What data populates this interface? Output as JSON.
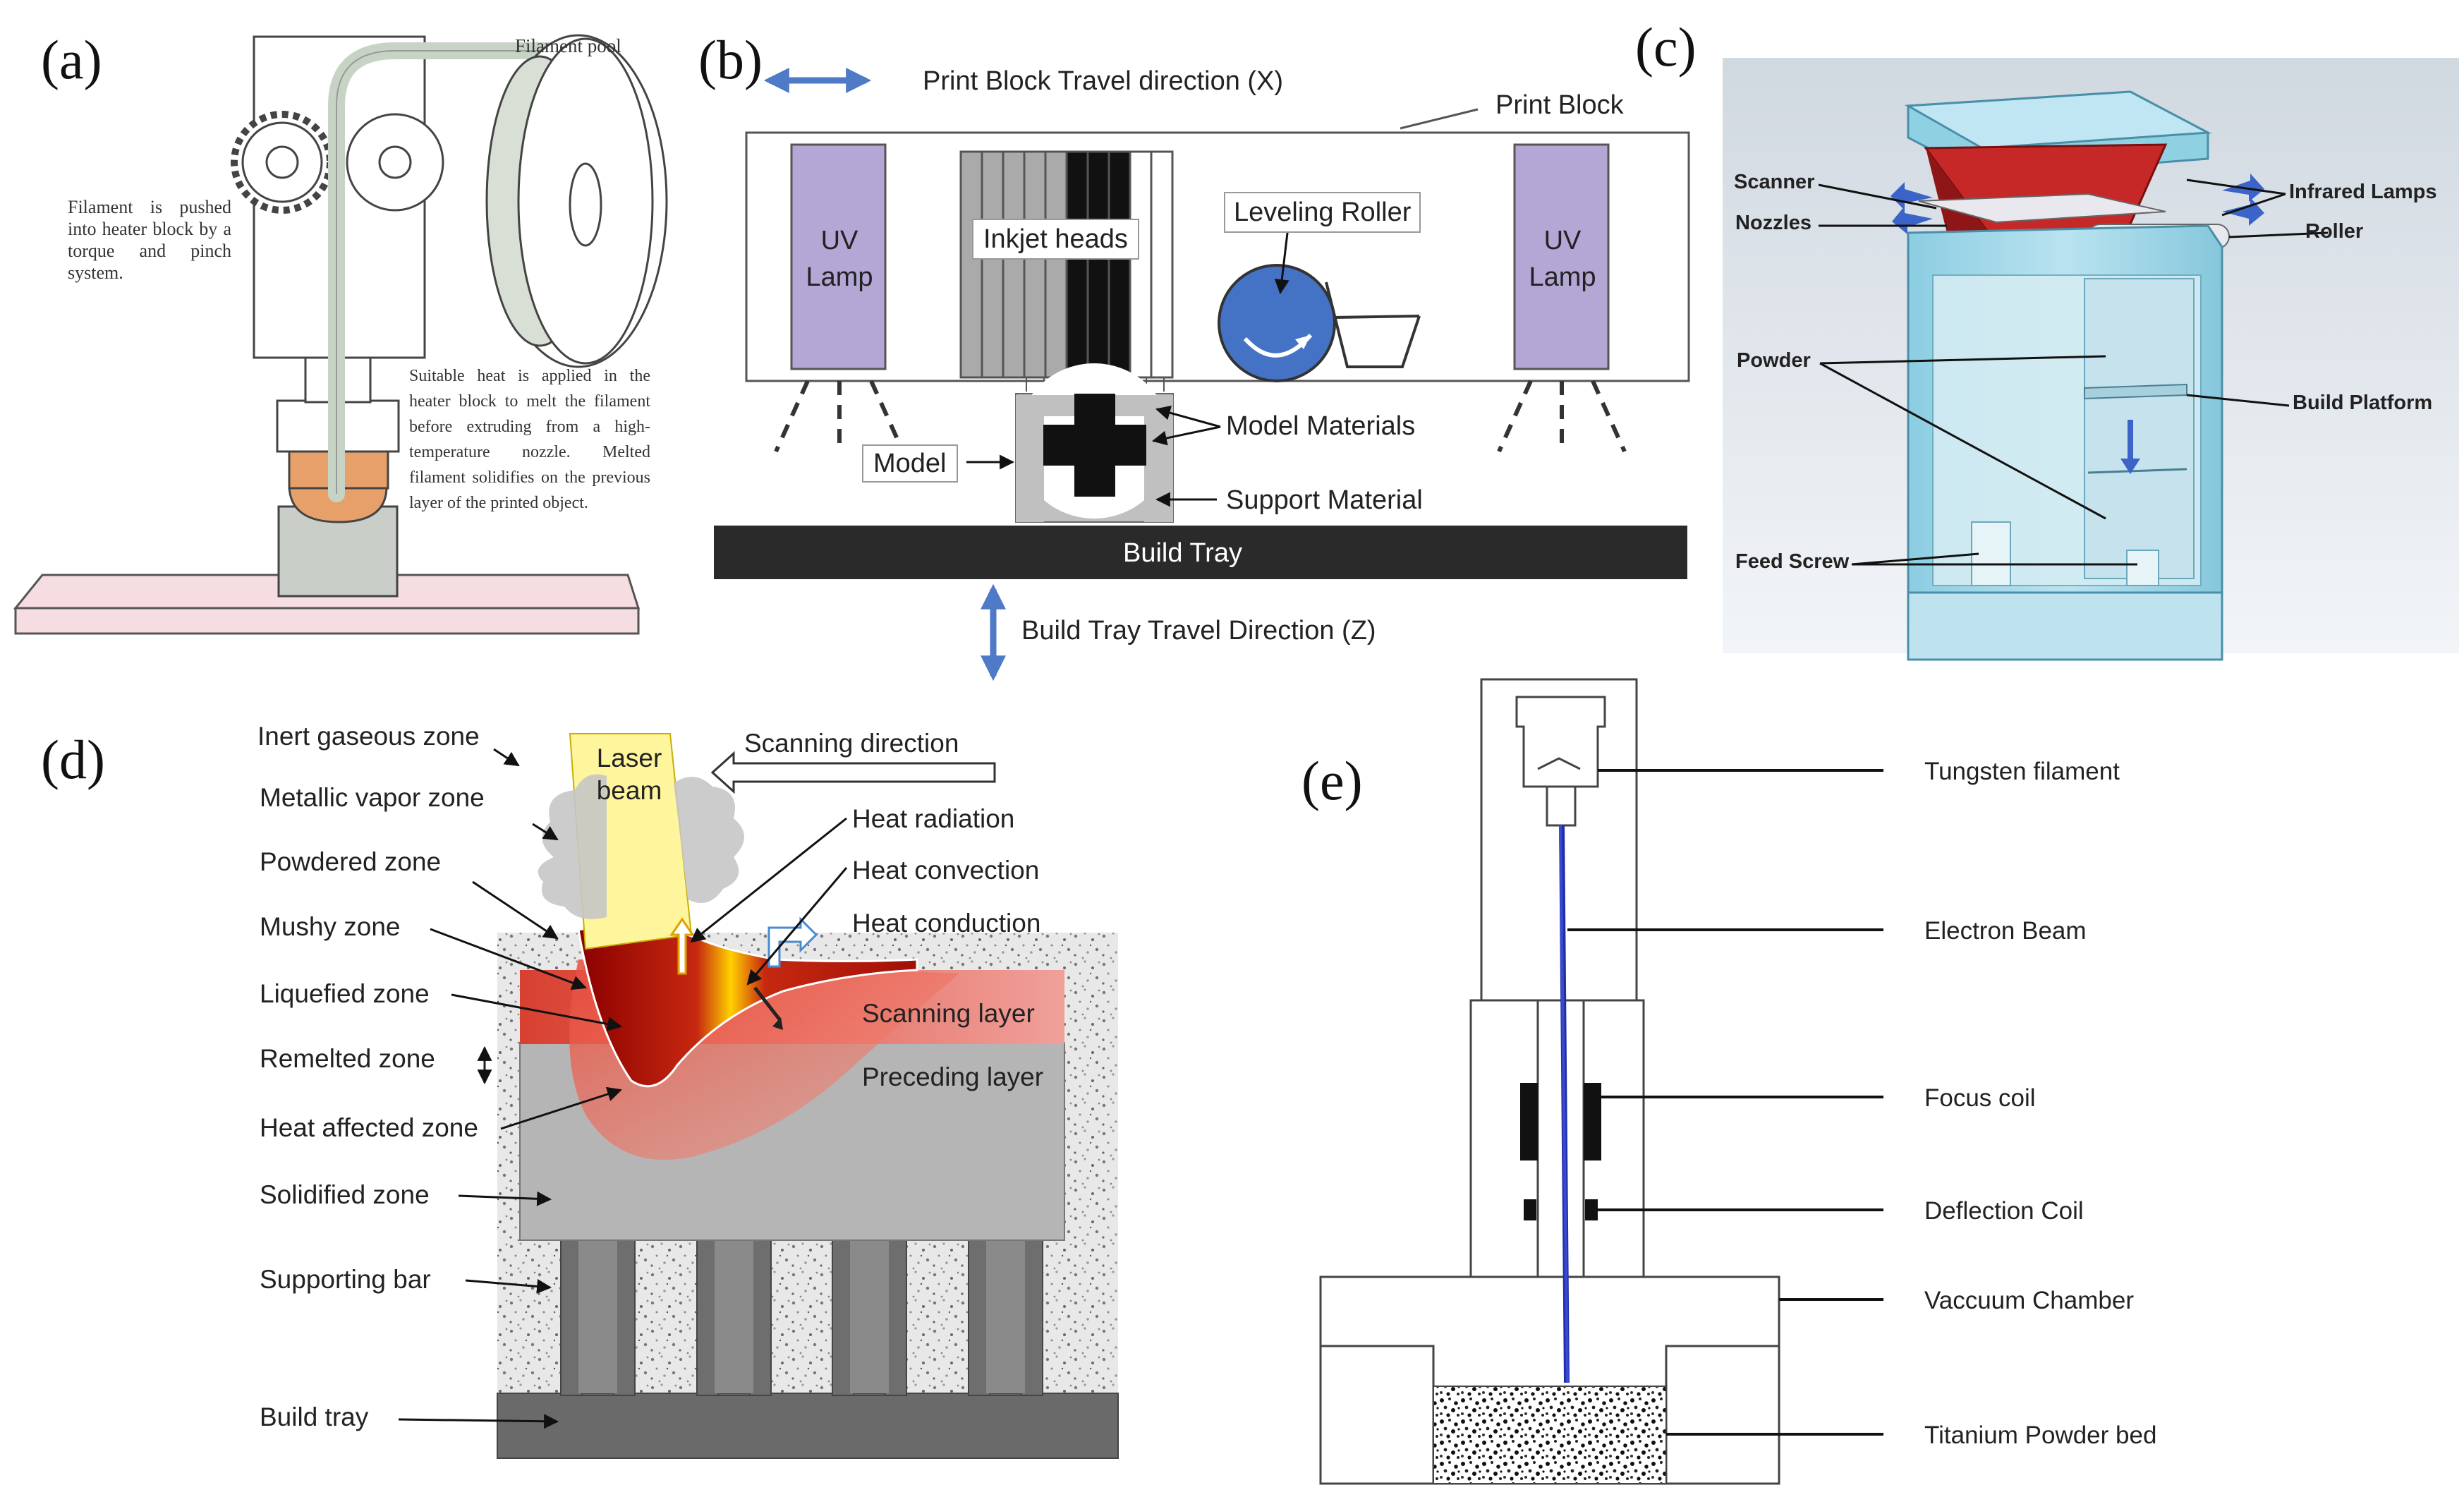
{
  "panels": {
    "a": {
      "letter": "(a)",
      "filament_pool": "Filament pool",
      "pushed_text": "Filament is pushed into heater block by a torque and pinch system.",
      "heat_text": "Suitable heat is applied in the heater block to melt the filament before extruding from a high-temperature nozzle. Melted filament solidifies on the previous layer of the printed object."
    },
    "b": {
      "letter": "(b)",
      "x_direction": "Print Block Travel direction (X)",
      "print_block": "Print Block",
      "uv_lamp_left": "UV Lamp",
      "uv_lamp_right": "UV Lamp",
      "inkjet_heads": "Inkjet heads",
      "leveling_roller": "Leveling Roller",
      "model": "Model",
      "model_materials": "Model Materials",
      "support_material": "Support Material",
      "build_tray": "Build Tray",
      "z_direction": "Build Tray Travel Direction (Z)"
    },
    "c": {
      "letter": "(c)",
      "scanner": "Scanner",
      "nozzles": "Nozzles",
      "infrared_lamps": "Infrared Lamps",
      "roller": "Roller",
      "powder": "Powder",
      "build_platform": "Build Platform",
      "feed_screw": "Feed Screw"
    },
    "d": {
      "letter": "(d)",
      "inert_gaseous_zone": "Inert gaseous zone",
      "metallic_vapor_zone": "Metallic vapor zone",
      "powdered_zone": "Powdered zone",
      "mushy_zone": "Mushy zone",
      "liquefied_zone": "Liquefied zone",
      "remelted_zone": "Remelted zone",
      "heat_affected_zone": "Heat affected zone",
      "solidified_zone": "Solidified zone",
      "supporting_bar": "Supporting bar",
      "build_tray": "Build tray",
      "laser_beam": "Laser beam",
      "scanning_direction": "Scanning direction",
      "heat_radiation": "Heat radiation",
      "heat_convection": "Heat convection",
      "heat_conduction": "Heat conduction",
      "scanning_layer": "Scanning layer",
      "preceding_layer": "Preceding layer"
    },
    "e": {
      "letter": "(e)",
      "tungsten_filament": "Tungsten filament",
      "electron_beam": "Electron Beam",
      "focus_coil": "Focus coil",
      "deflection_coil": "Deflection Coil",
      "vaccuum_chamber": "Vaccuum Chamber",
      "titanium_powder_bed": "Titanium Powder bed"
    }
  },
  "colors": {
    "uv_lamp": "#b4a7d6",
    "roller_blue": "#4472c4",
    "accent_arrow": "#4f7ac7",
    "melt_red": "#c0180c",
    "laser_yellow": "#fff59d",
    "teal": "#9fd4e6",
    "infrared_red": "#c62828",
    "electron_blue": "#1f2fa8"
  }
}
